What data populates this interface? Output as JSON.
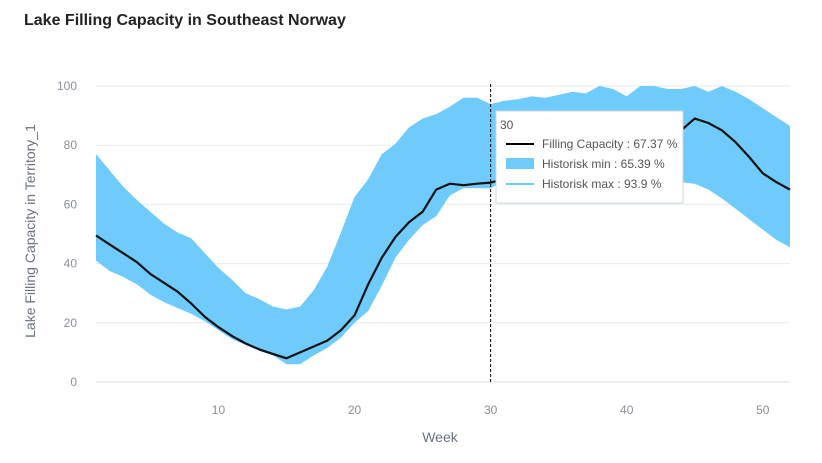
{
  "page": {
    "title": "Lake Filling Capacity in Southeast Norway"
  },
  "colors": {
    "band": "#6ecbfb",
    "line": "#111111",
    "grid": "#e6e9ef",
    "hover": "#000000"
  },
  "chart_data": {
    "type": "area",
    "title": "Lake Filling Capacity in Southeast Norway",
    "xlabel": "Week",
    "ylabel": "Lake Filling Capacity in Territory_1",
    "xlim": [
      1,
      52
    ],
    "ylim": [
      0,
      100
    ],
    "xticks": [
      10,
      20,
      30,
      40,
      50
    ],
    "yticks": [
      0,
      20,
      40,
      60,
      80,
      100
    ],
    "grid": true,
    "x": [
      1,
      2,
      3,
      4,
      5,
      6,
      7,
      8,
      9,
      10,
      11,
      12,
      13,
      14,
      15,
      16,
      17,
      18,
      19,
      20,
      21,
      22,
      23,
      24,
      25,
      26,
      27,
      28,
      29,
      30,
      31,
      32,
      33,
      34,
      35,
      36,
      37,
      38,
      39,
      40,
      41,
      42,
      43,
      44,
      45,
      46,
      47,
      48,
      49,
      50,
      51,
      52
    ],
    "series": [
      {
        "name": "Filling Capacity",
        "values": [
          49.5,
          46.5,
          43.5,
          40.5,
          36.5,
          33.5,
          30.5,
          26.5,
          22,
          18.5,
          15.5,
          13,
          11,
          9.5,
          8,
          10,
          12,
          14,
          17.5,
          22.5,
          33,
          42,
          49,
          54,
          57.5,
          65,
          67,
          66.5,
          67,
          67.37,
          68.5,
          69.5,
          70,
          71,
          72.5,
          73.5,
          75,
          76.5,
          78,
          79.5,
          80.5,
          81.5,
          83,
          85,
          89,
          87.5,
          85,
          81,
          76,
          70.5,
          67.5,
          65
        ]
      },
      {
        "name": "Historisk min",
        "values": [
          41,
          37.5,
          35.5,
          33,
          29.5,
          27,
          25,
          23,
          20.5,
          17.5,
          14.5,
          12.5,
          10.5,
          9,
          6,
          6,
          9,
          11.5,
          15,
          20,
          24,
          32.5,
          42,
          48,
          53,
          56,
          63,
          65.5,
          65.5,
          65.39,
          68,
          69,
          70,
          70.5,
          71,
          71.5,
          71,
          70.5,
          70,
          69.5,
          69,
          68.5,
          68,
          67.5,
          67,
          65,
          62,
          58.5,
          55,
          51.5,
          48,
          45.5
        ]
      },
      {
        "name": "Historisk max",
        "values": [
          77,
          71.5,
          66,
          61.5,
          57.5,
          53.5,
          50.5,
          48.5,
          43.5,
          38.5,
          34.5,
          30,
          28,
          25.5,
          24.5,
          25.5,
          31,
          39,
          50.5,
          62.5,
          68.5,
          77,
          80.5,
          86,
          89,
          90.5,
          93,
          96,
          96,
          93.9,
          95,
          95.5,
          96.5,
          96,
          97,
          98,
          97.5,
          100,
          99,
          96.5,
          100,
          100,
          99,
          99,
          100,
          98,
          100,
          98,
          95.5,
          92.5,
          89.5,
          86.5
        ]
      }
    ],
    "hover": {
      "week_label": "30",
      "items": [
        {
          "label": "Filling Capacity : 67.37 %",
          "kind": "line"
        },
        {
          "label": "Historisk min :  65.39 %",
          "kind": "band"
        },
        {
          "label": "Historisk max : 93.9 %",
          "kind": "thin"
        }
      ]
    }
  }
}
